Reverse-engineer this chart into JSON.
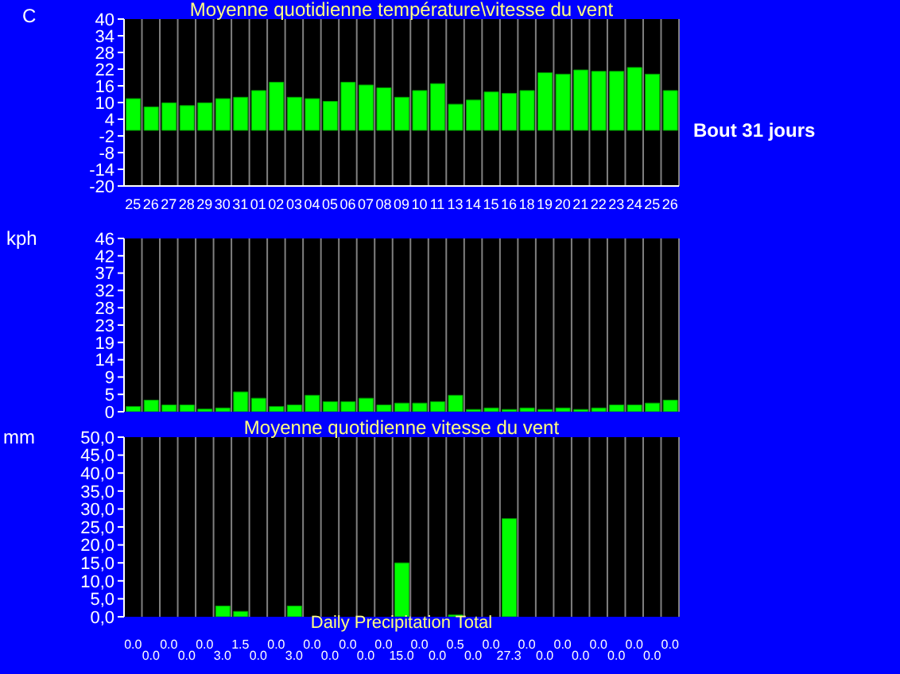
{
  "chart_data": [
    {
      "type": "bar",
      "title": "Moyenne quotidienne température\\vitesse du vent",
      "ylabel": "C",
      "annotations": [
        "Bout 31 jours"
      ],
      "categories": [
        "25",
        "26",
        "27",
        "28",
        "29",
        "30",
        "31",
        "01",
        "02",
        "03",
        "04",
        "05",
        "06",
        "07",
        "08",
        "09",
        "10",
        "11",
        "13",
        "14",
        "15",
        "16",
        "18",
        "19",
        "20",
        "21",
        "22",
        "23",
        "24",
        "25",
        "26"
      ],
      "values": [
        11.4,
        8.4,
        9.9,
        8.9,
        9.9,
        11.4,
        11.9,
        14.3,
        17.3,
        11.9,
        11.4,
        10.4,
        17.3,
        16.3,
        15.3,
        11.9,
        14.3,
        16.8,
        9.4,
        10.9,
        13.8,
        13.3,
        14.3,
        20.7,
        20.2,
        21.7,
        21.2,
        21.2,
        22.6,
        20.2,
        14.3
      ],
      "color": "#00ff00",
      "ylim": [
        -20,
        40
      ],
      "yticks": [
        -20,
        -14,
        -8,
        -2,
        4,
        10,
        16,
        22,
        28,
        34,
        40
      ],
      "grid": "x"
    },
    {
      "type": "bar",
      "ylabel": "kph",
      "tick_labels": "y",
      "categories": [
        "25",
        "26",
        "27",
        "28",
        "29",
        "30",
        "31",
        "01",
        "02",
        "03",
        "04",
        "05",
        "06",
        "07",
        "08",
        "09",
        "10",
        "11",
        "13",
        "14",
        "15",
        "16",
        "18",
        "19",
        "20",
        "21",
        "22",
        "23",
        "24",
        "25",
        "26"
      ],
      "values": [
        1.4,
        3.1,
        1.8,
        1.8,
        0.7,
        1.0,
        5.3,
        3.6,
        1.4,
        1.8,
        4.4,
        2.7,
        2.7,
        3.6,
        1.8,
        2.3,
        2.3,
        2.7,
        4.4,
        0.6,
        1.0,
        0.6,
        1.0,
        0.6,
        1.0,
        0.6,
        1.0,
        1.8,
        1.8,
        2.3,
        3.1
      ],
      "color": "#00ff00",
      "ylim": [
        0,
        46.4
      ],
      "yticks": [
        0,
        {
          "value": 4.64,
          "label": "5"
        },
        {
          "value": 9.28,
          "label": "9"
        },
        {
          "value": 13.92,
          "label": "14"
        },
        {
          "value": 18.56,
          "label": "19"
        },
        {
          "value": 23.2,
          "label": "23"
        },
        {
          "value": 27.84,
          "label": "28"
        },
        {
          "value": 32.48,
          "label": "32"
        },
        {
          "value": 37.12,
          "label": "37"
        },
        {
          "value": 41.76,
          "label": "42"
        },
        {
          "value": 46.4,
          "label": "46"
        }
      ],
      "grid": "x"
    },
    {
      "type": "bar",
      "title": "Moyenne quotidienne vitesse du vent",
      "xlabel": "Daily Precipitation Total",
      "ylabel": "mm",
      "tick_labels": "y",
      "categories": [
        "25",
        "26",
        "27",
        "28",
        "29",
        "30",
        "31",
        "01",
        "02",
        "03",
        "04",
        "05",
        "06",
        "07",
        "08",
        "09",
        "10",
        "11",
        "13",
        "14",
        "15",
        "16",
        "18",
        "19",
        "20",
        "21",
        "22",
        "23",
        "24",
        "25",
        "26"
      ],
      "values": [
        0,
        0,
        0,
        0,
        0,
        3.0,
        1.5,
        0,
        0,
        3.0,
        0,
        0,
        0,
        0,
        0,
        15.0,
        0,
        0,
        0.5,
        0,
        0,
        27.3,
        0,
        0,
        0,
        0,
        0,
        0,
        0,
        0,
        0
      ],
      "value_labels": [
        "0.0",
        "0.0",
        "0.0",
        "0.0",
        "0.0",
        "3.0",
        "1.5",
        "0.0",
        "0.0",
        "3.0",
        "0.0",
        "0.0",
        "0.0",
        "0.0",
        "0.0",
        "15.0",
        "0.0",
        "0.0",
        "0.5",
        "0.0",
        "0.0",
        "27.3",
        "0.0",
        "0.0",
        "0.0",
        "0.0",
        "0.0",
        "0.0",
        "0.0",
        "0.0",
        "0.0"
      ],
      "color": "#00ff00",
      "ylim": [
        0,
        50
      ],
      "yticks": [
        {
          "value": 0,
          "label": "0,0"
        },
        {
          "value": 5,
          "label": "5,0"
        },
        {
          "value": 10,
          "label": "10,0"
        },
        {
          "value": 15,
          "label": "15,0"
        },
        {
          "value": 20,
          "label": "20,0"
        },
        {
          "value": 25,
          "label": "25,0"
        },
        {
          "value": 30,
          "label": "30,0"
        },
        {
          "value": 35,
          "label": "35,0"
        },
        {
          "value": 40,
          "label": "40,0"
        },
        {
          "value": 45,
          "label": "45,0"
        },
        {
          "value": 50,
          "label": "50,0"
        }
      ],
      "grid": "x"
    }
  ]
}
